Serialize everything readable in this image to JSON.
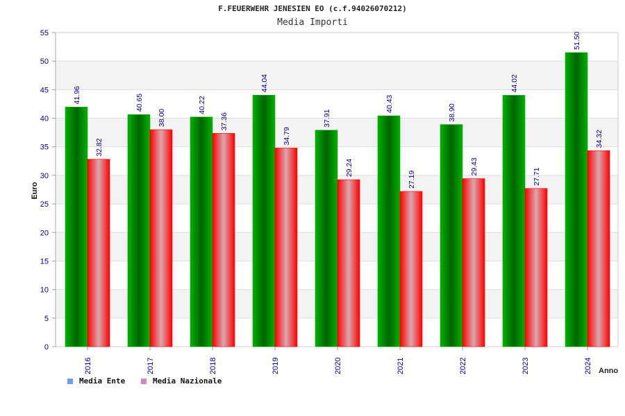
{
  "chart_data": {
    "type": "bar",
    "title": "F.FEUERWEHR JENESIEN EO (c.f.94026070212)",
    "subtitle": "Media Importi",
    "ylabel": "Euro",
    "xlabel": "Anno",
    "ylim": [
      0,
      55
    ],
    "yticks": [
      "0",
      "5",
      "10",
      "15",
      "20",
      "25",
      "30",
      "35",
      "40",
      "45",
      "50",
      "55"
    ],
    "categories": [
      "2016",
      "2017",
      "2018",
      "2019",
      "2020",
      "2021",
      "2022",
      "2023",
      "2024"
    ],
    "series": [
      {
        "name": "Media Ente",
        "values": [
          41.96,
          40.65,
          40.22,
          44.04,
          37.91,
          40.43,
          38.9,
          44.02,
          51.5
        ],
        "labels": [
          "41.96",
          "40.65",
          "40.22",
          "44.04",
          "37.91",
          "40.43",
          "38.90",
          "44.02",
          "51.50"
        ]
      },
      {
        "name": "Media Nazionale",
        "values": [
          32.82,
          38.0,
          37.36,
          34.79,
          29.24,
          27.19,
          29.43,
          27.71,
          34.32
        ],
        "labels": [
          "32.82",
          "38.00",
          "37.36",
          "34.79",
          "29.24",
          "27.19",
          "29.43",
          "27.71",
          "34.32"
        ]
      }
    ],
    "grid": true,
    "legend_position": "bottom-left",
    "colors": {
      "ente_edge": "#00b000",
      "ente_center": "#006400",
      "naz_edge": "#ff0000",
      "naz_center": "#d8a8b0",
      "legend_ente": "#6aa0e8",
      "legend_naz": "#d888b8",
      "label_text": "#000080",
      "axis_text": "#000080"
    }
  }
}
